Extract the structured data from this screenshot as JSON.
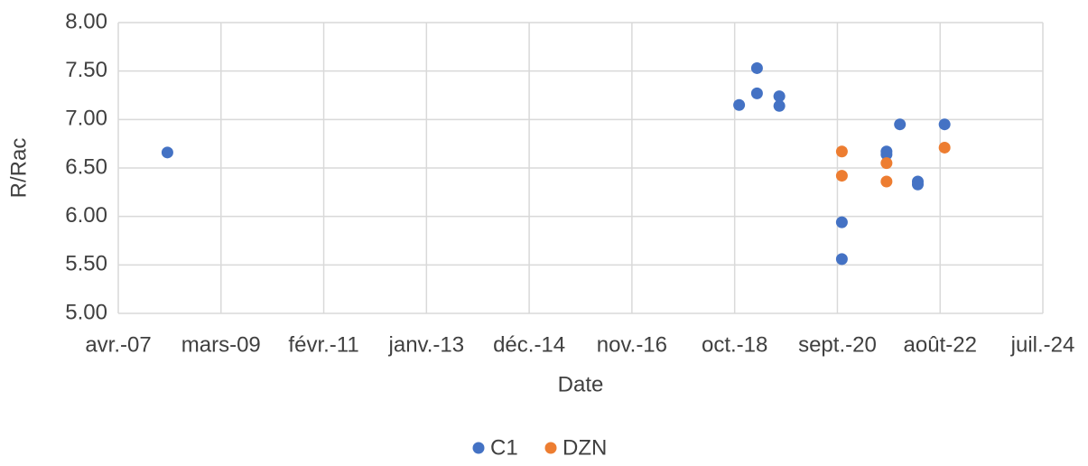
{
  "chart_data": {
    "type": "scatter",
    "x_label": "Date",
    "y_label": "R/Rac",
    "xlim": [
      "2007-04",
      "2024-07"
    ],
    "xticks": [
      {
        "value": "2007-04",
        "label": "avr.-07"
      },
      {
        "value": "2009-03",
        "label": "mars-09"
      },
      {
        "value": "2011-02",
        "label": "févr.-11"
      },
      {
        "value": "2013-01",
        "label": "janv.-13"
      },
      {
        "value": "2014-12",
        "label": "déc.-14"
      },
      {
        "value": "2016-11",
        "label": "nov.-16"
      },
      {
        "value": "2018-10",
        "label": "oct.-18"
      },
      {
        "value": "2020-09",
        "label": "sept.-20"
      },
      {
        "value": "2022-08",
        "label": "août-22"
      },
      {
        "value": "2024-07",
        "label": "juil.-24"
      }
    ],
    "ylim": [
      5,
      8
    ],
    "yticks": [
      {
        "value": 5,
        "label": "5.00"
      },
      {
        "value": 5.5,
        "label": "5.50"
      },
      {
        "value": 6,
        "label": "6.00"
      },
      {
        "value": 6.5,
        "label": "6.50"
      },
      {
        "value": 7,
        "label": "7.00"
      },
      {
        "value": 7.5,
        "label": "7.50"
      },
      {
        "value": 8,
        "label": "8.00"
      }
    ],
    "grid": true,
    "legend": "bottom",
    "series": [
      {
        "name": "C1",
        "color": "#4472c4",
        "x": [
          "2008-03",
          "2018-11",
          "2019-03",
          "2019-03",
          "2019-08",
          "2019-08",
          "2020-10",
          "2020-10",
          "2021-08",
          "2021-08",
          "2021-11",
          "2022-03",
          "2022-03",
          "2022-09"
        ],
        "values": [
          6.66,
          7.15,
          7.53,
          7.27,
          7.24,
          7.14,
          5.94,
          5.56,
          6.67,
          6.64,
          6.95,
          6.36,
          6.33,
          6.95
        ]
      },
      {
        "name": "DZN",
        "color": "#ed7d31",
        "x": [
          "2020-10",
          "2020-10",
          "2021-08",
          "2021-08",
          "2022-09"
        ],
        "values": [
          6.67,
          6.42,
          6.55,
          6.36,
          6.71
        ]
      }
    ]
  }
}
